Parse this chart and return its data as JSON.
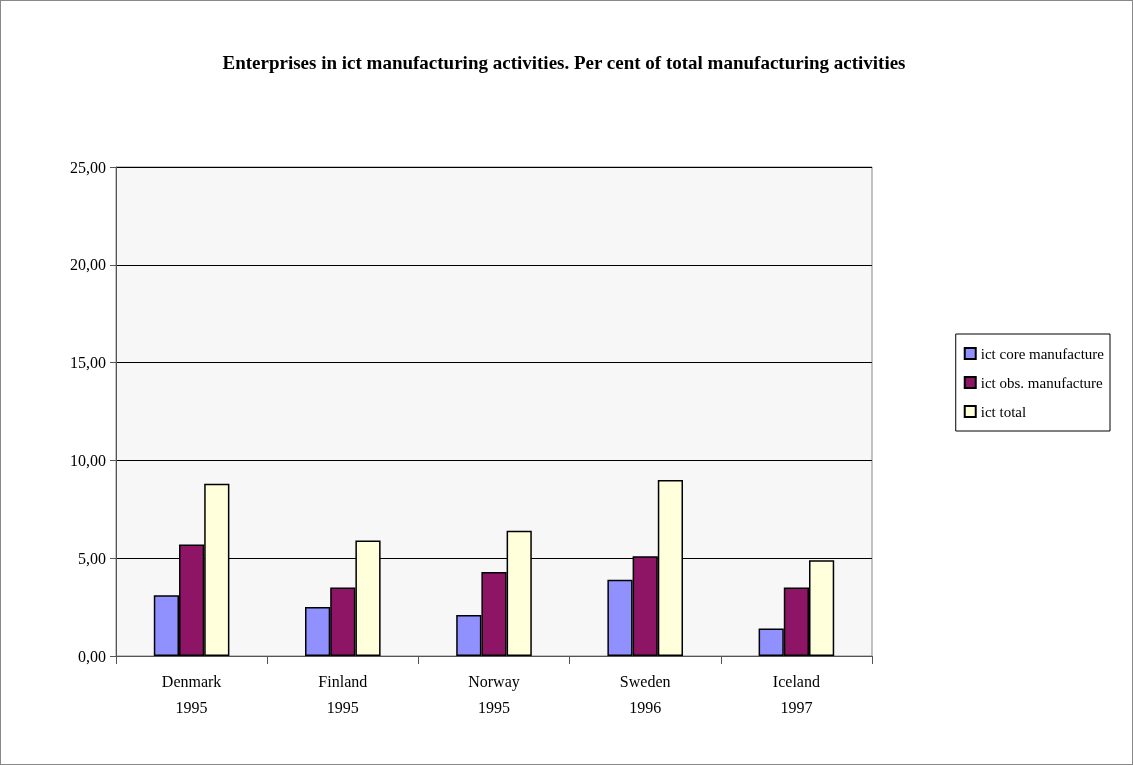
{
  "chart_data": {
    "type": "bar",
    "title": "Enterprises in ict manufacturing activities. Per cent of total manufacturing activities",
    "categories": [
      "Denmark\n1995",
      "Finland\n1995",
      "Norway\n1995",
      "Sweden\n1996",
      "Iceland\n1997"
    ],
    "series": [
      {
        "name": "ict core manufacture",
        "color": "#9090ff",
        "values": [
          3.1,
          2.5,
          2.1,
          3.9,
          1.4
        ]
      },
      {
        "name": "ict obs. manufacture",
        "color": "#8e1466",
        "values": [
          5.7,
          3.5,
          4.3,
          5.1,
          3.5
        ]
      },
      {
        "name": "ict total",
        "color": "#ffffdc",
        "values": [
          8.8,
          5.9,
          6.4,
          9.0,
          4.9
        ]
      }
    ],
    "ylim": [
      0,
      25
    ],
    "yticks": [
      {
        "value": 0,
        "label": "0,00"
      },
      {
        "value": 5,
        "label": "5,00"
      },
      {
        "value": 10,
        "label": "10,00"
      },
      {
        "value": 15,
        "label": "15,00"
      },
      {
        "value": 20,
        "label": "20,00"
      },
      {
        "value": 25,
        "label": "25,00"
      }
    ],
    "grid": "y",
    "legend": "right"
  }
}
